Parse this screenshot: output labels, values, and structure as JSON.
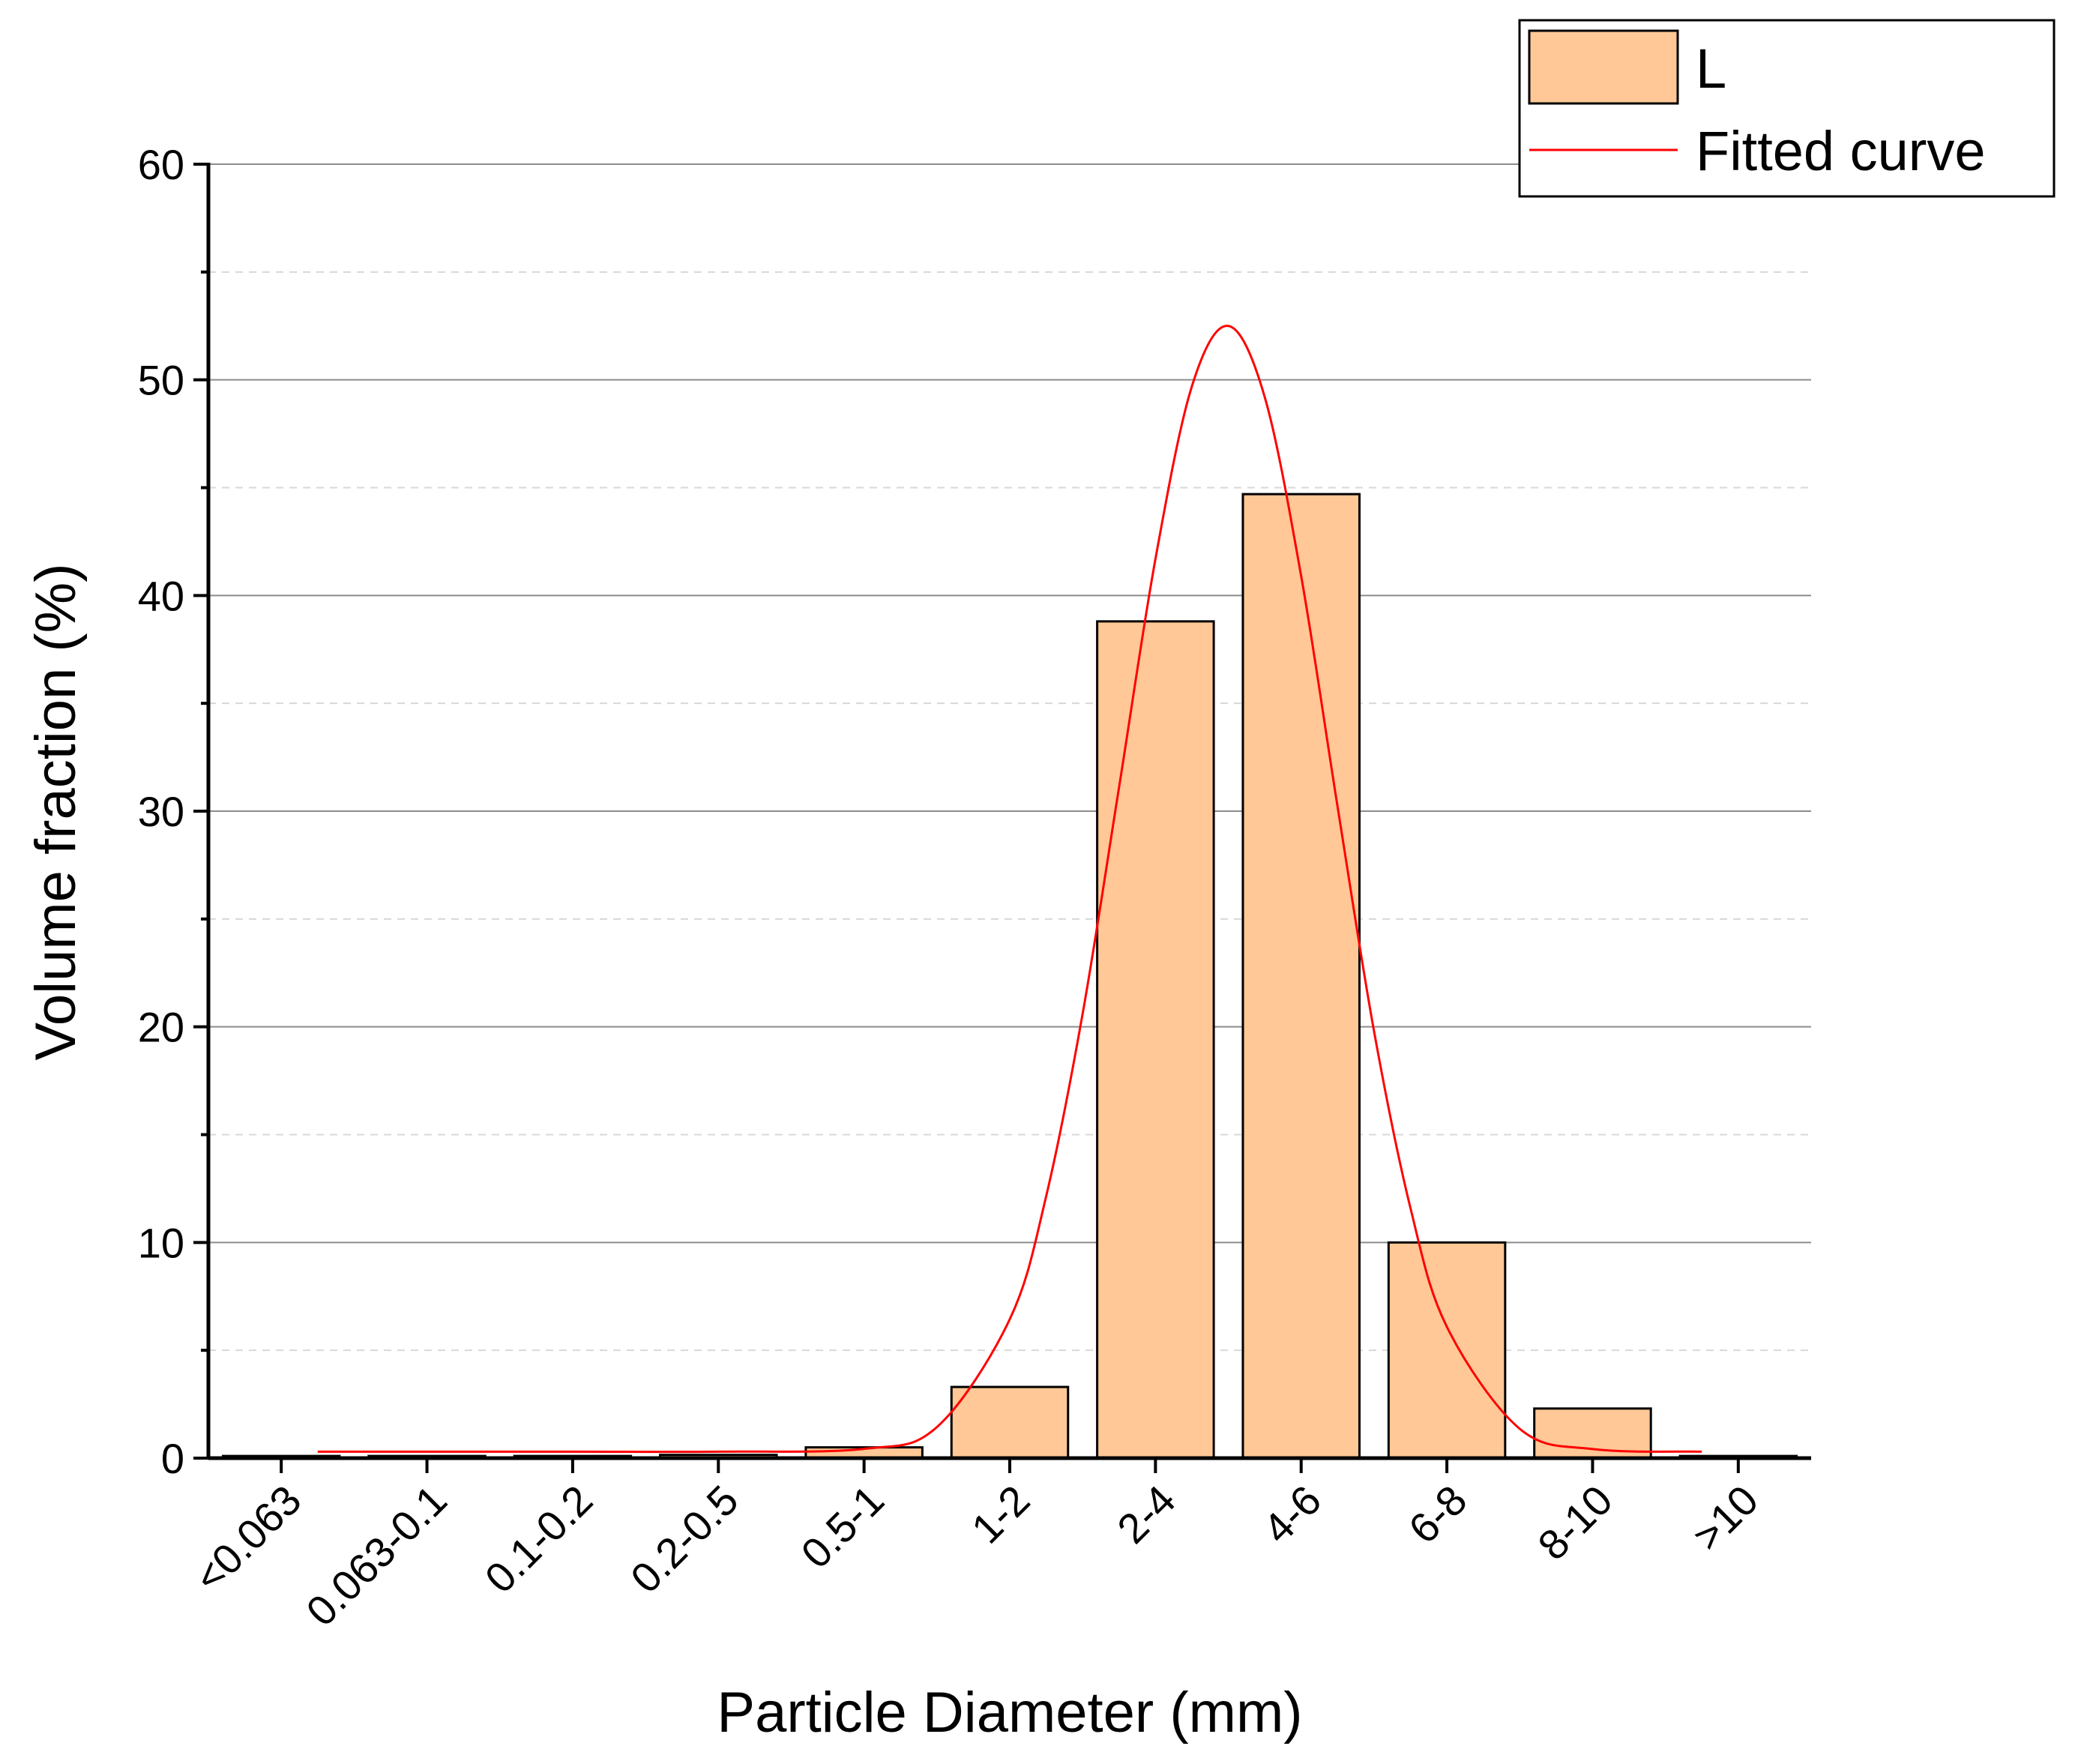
{
  "chart_data": {
    "type": "bar",
    "x_label": "Particle Diameter (mm)",
    "y_label": "Volume fraction (%)",
    "categories": [
      "<0.063",
      "0.063-0.1",
      "0.1-0.2",
      "0.2-0.5",
      "0.5-1",
      "1-2",
      "2-4",
      "4-6",
      "6-8",
      "8-10",
      ">10"
    ],
    "series": [
      {
        "name": "L",
        "color": "#ffc896",
        "values": [
          0.1,
          0.1,
          0.1,
          0.15,
          0.5,
          3.3,
          38.8,
          44.7,
          10,
          2.3,
          0.1
        ]
      },
      {
        "name": "Fitted curve",
        "color": "#ff0000",
        "type": "line",
        "x": [
          0.25,
          1,
          2,
          3,
          4,
          4.5,
          5,
          5.25,
          5.5,
          5.75,
          6,
          6.25,
          6.5,
          6.75,
          7,
          7.25,
          7.5,
          7.75,
          8,
          8.5,
          9,
          9.75
        ],
        "values": [
          0.3,
          0.3,
          0.3,
          0.3,
          0.43,
          1.44,
          6.44,
          12.15,
          20.6,
          31.1,
          41.7,
          49.7,
          52.5,
          49.2,
          40.9,
          30.2,
          19.8,
          11.6,
          6.09,
          1.36,
          0.42,
          0.3
        ]
      }
    ],
    "ylim": [
      0,
      60
    ],
    "yticks": [
      0,
      10,
      20,
      30,
      40,
      50,
      60
    ],
    "minor_yticks": [
      5,
      15,
      25,
      35,
      45,
      55
    ],
    "grid": true,
    "legend": "top-right"
  }
}
